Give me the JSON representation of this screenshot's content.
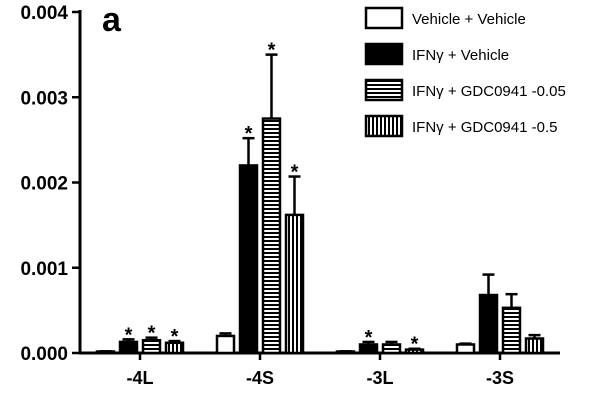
{
  "chart_data": {
    "type": "bar",
    "panel_label": "a",
    "categories": [
      "-4L",
      "-4S",
      "-3L",
      "-3S"
    ],
    "ylim": [
      0,
      0.004
    ],
    "y_ticks": [
      "0.000",
      "0.001",
      "0.002",
      "0.003",
      "0.004"
    ],
    "y_tick_values": [
      0,
      0.001,
      0.002,
      0.003,
      0.004
    ],
    "series": [
      {
        "name": "Vehicle + Vehicle",
        "pattern": "open",
        "values": [
          1e-05,
          0.0002,
          1e-05,
          0.0001
        ],
        "errors": [
          1e-05,
          3e-05,
          1e-05,
          1e-05
        ],
        "significant": [
          false,
          false,
          false,
          false
        ]
      },
      {
        "name": "IFNγ + Vehicle",
        "pattern": "solid",
        "values": [
          0.00013,
          0.0022,
          0.0001,
          0.00068
        ],
        "errors": [
          3e-05,
          0.00032,
          3e-05,
          0.00024
        ],
        "significant": [
          true,
          true,
          true,
          false
        ]
      },
      {
        "name": "IFNγ + GDC0941 -0.05",
        "pattern": "horizontal-stripes",
        "values": [
          0.00015,
          0.00275,
          0.0001,
          0.00053
        ],
        "errors": [
          3e-05,
          0.00075,
          3e-05,
          0.00016
        ],
        "significant": [
          true,
          true,
          false,
          false
        ]
      },
      {
        "name": "IFNγ + GDC0941 -0.5",
        "pattern": "vertical-stripes",
        "values": [
          0.00012,
          0.00162,
          4e-05,
          0.00017
        ],
        "errors": [
          2e-05,
          0.00045,
          1e-05,
          4e-05
        ],
        "significant": [
          true,
          true,
          true,
          false
        ]
      }
    ],
    "significance_marker": "*",
    "legend_position": "top-right",
    "grid": false
  }
}
